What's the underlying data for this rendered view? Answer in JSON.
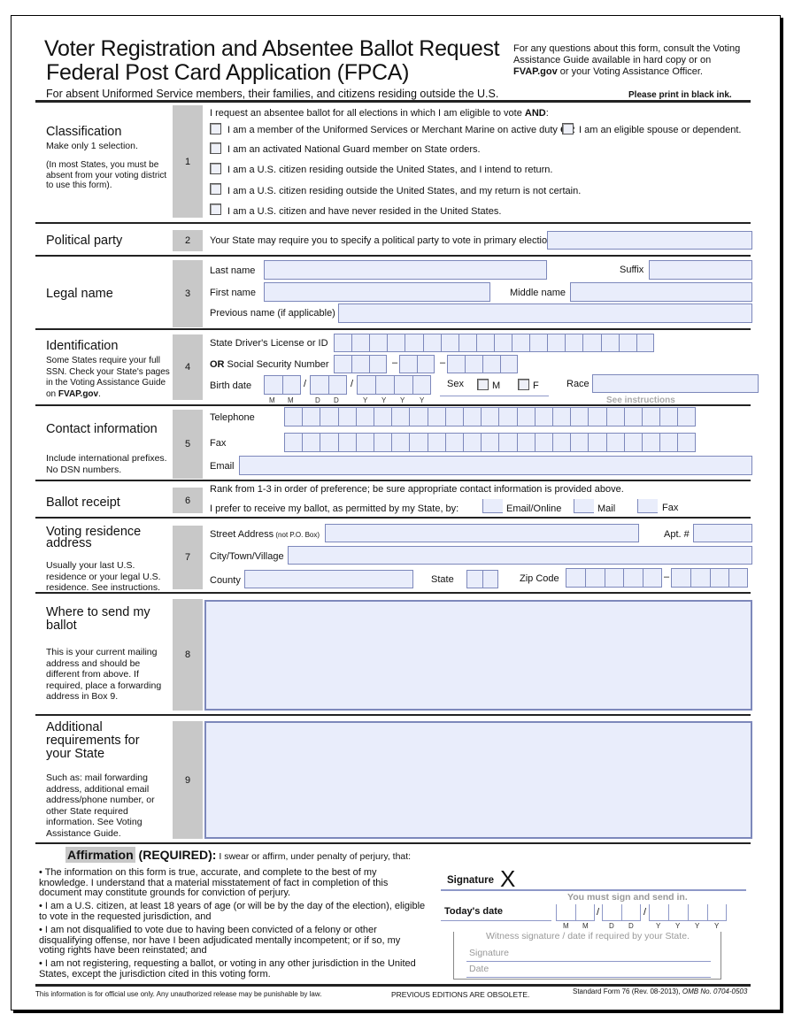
{
  "header": {
    "title1": "Voter Registration and Absentee Ballot Request",
    "title2": "Federal Post Card Application (FPCA)",
    "subtitle": "For absent Uniformed Service members, their families, and citizens residing  outside the U.S.",
    "note_a": "For any questions about this form, consult the Voting",
    "note_b": "Assistance Guide available in hard copy or on",
    "note_c_bold": "FVAP.gov",
    "note_c": " or your Voting Assistance Officer.",
    "print_note": "Please print in black ink."
  },
  "s1": {
    "title": "Classification",
    "sub": "Make only 1 selection.",
    "note": "(In most States, you must be absent from your voting district to use this form).",
    "num": "1",
    "intro": "I request an absentee ballot for all elections in which I am eligible to vote ",
    "intro_bold": "AND",
    "opt1": "I am a member of the Uniformed Services or Merchant Marine on active duty ",
    "or": "OR",
    "opt1b": "I am an eligible spouse or dependent.",
    "opt2": "I am an activated National Guard member on State orders.",
    "opt3": "I am a U.S. citizen residing outside the United States, and I intend to return.",
    "opt4": "I am a U.S. citizen residing outside  the United States, and my return is not certain.",
    "opt5": "I am a U.S. citizen and have never resided in the United States."
  },
  "s2": {
    "title": "Political party",
    "num": "2",
    "text": "Your State may require you to specify a political party to vote in primary elections:"
  },
  "s3": {
    "title": "Legal name",
    "num": "3",
    "last": "Last name",
    "suffix": "Suffix",
    "first": "First name",
    "middle": "Middle name",
    "previous": "Previous name (if applicable)"
  },
  "s4": {
    "title": "Identification",
    "note": "Some States require your full SSN.  Check your State's pages in the Voting Assistance Guide on ",
    "note_bold": "FVAP.gov",
    "note_end": ".",
    "num": "4",
    "license": "State Driver's License or ID",
    "or": "OR",
    "ssn": " Social Security Number",
    "birth": "Birth date",
    "sex": "Sex",
    "m": "M",
    "f": "F",
    "race": "Race",
    "see": "See instructions",
    "date_hints": [
      "M",
      "M",
      "D",
      "D",
      "Y",
      "Y",
      "Y",
      "Y"
    ]
  },
  "s5": {
    "title": "Contact information",
    "note": "Include international prefixes. No DSN numbers.",
    "num": "5",
    "tel": "Telephone",
    "fax": "Fax",
    "email": "Email"
  },
  "s6": {
    "title": "Ballot receipt",
    "num": "6",
    "rank": "Rank from 1-3 in order of preference; be sure appropriate contact information is provided above.",
    "prefer": "I prefer to receive my ballot, as permitted by my State, by:",
    "opt_email": "Email/Online",
    "opt_mail": "Mail",
    "opt_fax": "Fax"
  },
  "s7": {
    "title": "Voting residence address",
    "note": "Usually your last U.S. residence or your legal U.S. residence. See instructions.",
    "num": "7",
    "street": "Street Address",
    "street_note": " (not P.O. Box)",
    "apt": "Apt. #",
    "city": "City/Town/Village",
    "county": "County",
    "state": "State",
    "zip": "Zip Code"
  },
  "s8": {
    "title": "Where to send my ballot",
    "note": "This is your current mailing address and should be different from above. If required, place a forwarding address in Box 9.",
    "num": "8"
  },
  "s9": {
    "title": "Additional requirements for your State",
    "note": "Such as: mail forwarding address, additional email address/phone number, or other State required information.  See Voting Assistance Guide.",
    "num": "9"
  },
  "aff": {
    "title": "Affirmation",
    "req": " (REQUIRED):",
    "intro": " I swear or affirm, under penalty of perjury, that:",
    "b1": "• The information on this form is true, accurate,  and complete to the best of my knowledge. I understand that a material misstatement of fact in completion of this document may constitute grounds for conviction of perjury.",
    "b2": "• I am a U.S. citizen, at least 18 years of age (or will be by the day of the election), eligible to vote in the requested jurisdiction, and",
    "b3": "• I am not disqualified to vote due to having been convicted of a felony or other disqualifying offense, nor have I been adjudicated mentally incompetent; or if so, my voting rights have been reinstated; and",
    "b4": "• I am not registering, requesting a ballot, or voting in any other jurisdiction in the United States, except the jurisdiction cited in this voting form.",
    "signature": "Signature",
    "x": "X",
    "must": "You must sign and send in.",
    "today": "Today's date",
    "witness": "Witness signature / date if required by your State.",
    "w_sig": "Signature",
    "w_date": "Date"
  },
  "footer": {
    "left": "This information is for official use only. Any unauthorized release may be punishable by law.",
    "mid": "PREVIOUS EDITIONS ARE OBSOLETE.",
    "right": "Standard Form 76 (Rev. 08-2013), ",
    "omb": "OMB No. 0704-0503"
  },
  "colors": {
    "field": "#e9edfb",
    "field_border": "#7d88bb",
    "section_number_bg": "#c8c8c8"
  }
}
